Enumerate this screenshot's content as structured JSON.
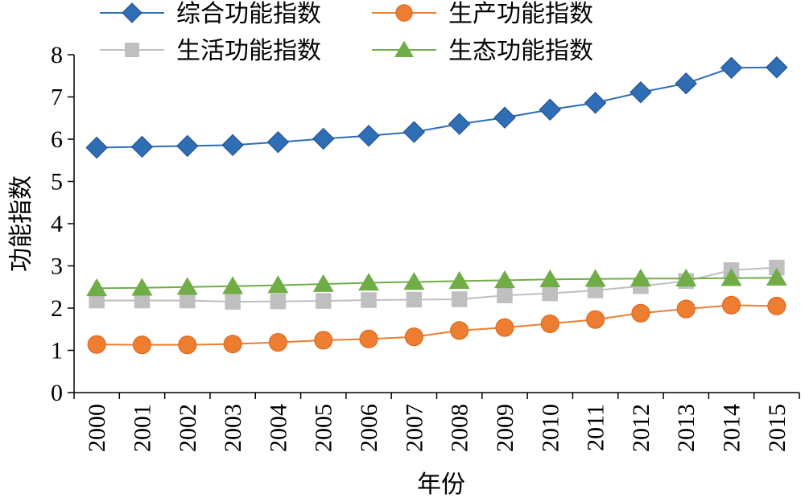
{
  "chart_data": {
    "type": "line",
    "title": "",
    "xlabel": "年份",
    "ylabel": "功能指数",
    "ylim": [
      0,
      8
    ],
    "yticks": [
      0,
      1,
      2,
      3,
      4,
      5,
      6,
      7,
      8
    ],
    "grid": false,
    "legend_position": "top",
    "categories": [
      "2000",
      "2001",
      "2002",
      "2003",
      "2004",
      "2005",
      "2006",
      "2007",
      "2008",
      "2009",
      "2010",
      "2011",
      "2012",
      "2013",
      "2014",
      "2015"
    ],
    "series": [
      {
        "name": "综合功能指数",
        "color": "#2f6db5",
        "marker": "diamond",
        "values": [
          5.8,
          5.82,
          5.84,
          5.86,
          5.93,
          6.01,
          6.08,
          6.17,
          6.36,
          6.51,
          6.7,
          6.86,
          7.11,
          7.32,
          7.69,
          7.7
        ]
      },
      {
        "name": "生产功能指数",
        "color": "#ed7d31",
        "marker": "circle",
        "values": [
          1.14,
          1.13,
          1.13,
          1.15,
          1.19,
          1.24,
          1.27,
          1.32,
          1.47,
          1.54,
          1.63,
          1.73,
          1.88,
          1.98,
          2.07,
          2.05
        ]
      },
      {
        "name": "生活功能指数",
        "color": "#bfbfbf",
        "marker": "square",
        "values": [
          2.18,
          2.18,
          2.18,
          2.15,
          2.16,
          2.17,
          2.19,
          2.2,
          2.21,
          2.3,
          2.35,
          2.42,
          2.52,
          2.64,
          2.9,
          2.96
        ]
      },
      {
        "name": "生态功能指数",
        "color": "#70ad47",
        "marker": "triangle",
        "values": [
          2.47,
          2.48,
          2.5,
          2.52,
          2.54,
          2.57,
          2.6,
          2.62,
          2.64,
          2.66,
          2.68,
          2.69,
          2.7,
          2.7,
          2.71,
          2.72
        ]
      }
    ]
  }
}
